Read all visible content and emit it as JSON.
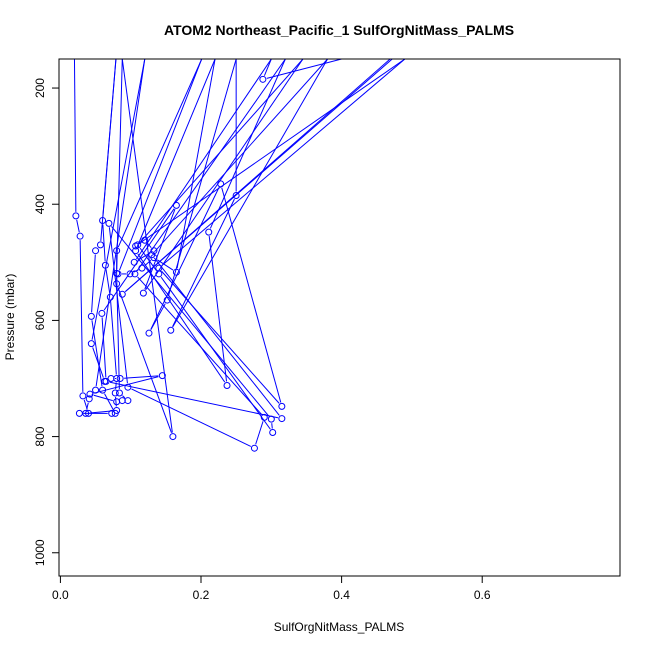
{
  "chart_data": {
    "type": "line",
    "title": "ATOM2 Northeast_Pacific_1 SulfOrgNitMass_PALMS",
    "xlabel": "SulfOrgNitMass_PALMS",
    "ylabel": "Pressure (mbar)",
    "xlim": [
      -0.002,
      0.796
    ],
    "ylim": [
      1040,
      150
    ],
    "y_reversed": true,
    "x_ticks": [
      0.0,
      0.2,
      0.4,
      0.6
    ],
    "x_tick_labels": [
      "0.0",
      "0.2",
      "0.4",
      "0.6"
    ],
    "y_ticks": [
      200,
      400,
      600,
      800,
      1000
    ],
    "y_tick_labels": [
      "200",
      "400",
      "600",
      "800",
      "1000"
    ],
    "grid": false,
    "line_color": "#0000ff",
    "series": [
      {
        "points": [
          [
            0.02,
            150
          ],
          [
            0.022,
            420
          ],
          [
            0.028,
            455
          ],
          [
            0.032,
            730
          ],
          [
            0.04,
            760
          ],
          [
            0.027,
            760
          ],
          [
            0.073,
            760
          ],
          [
            0.078,
            760
          ],
          [
            0.06,
            720
          ],
          [
            0.044,
            593
          ],
          [
            0.05,
            480
          ],
          [
            0.057,
            470
          ],
          [
            0.079,
            150
          ],
          [
            0.06,
            428
          ],
          [
            0.064,
            505
          ],
          [
            0.071,
            560
          ],
          [
            0.08,
            700
          ],
          [
            0.078,
            725
          ],
          [
            0.08,
            755
          ],
          [
            0.036,
            760
          ],
          [
            0.041,
            735
          ],
          [
            0.05,
            720
          ],
          [
            0.12,
            150
          ],
          [
            0.044,
            640
          ],
          [
            0.063,
            705
          ],
          [
            0.072,
            700
          ],
          [
            0.085,
            700
          ],
          [
            0.145,
            695
          ],
          [
            0.042,
            727
          ],
          [
            0.08,
            740
          ],
          [
            0.088,
            738
          ],
          [
            0.096,
            738
          ],
          [
            0.084,
            725
          ],
          [
            0.08,
            519
          ],
          [
            0.088,
            150
          ],
          [
            0.16,
            800
          ],
          [
            0.08,
            537
          ],
          [
            0.08,
            480
          ],
          [
            0.201,
            150
          ],
          [
            0.082,
            520
          ],
          [
            0.099,
            520
          ],
          [
            0.116,
            510
          ],
          [
            0.133,
            492
          ],
          [
            0.165,
            517
          ],
          [
            0.22,
            150
          ],
          [
            0.107,
            480
          ],
          [
            0.237,
            712
          ],
          [
            0.211,
            448
          ],
          [
            0.32,
            150
          ],
          [
            0.106,
            520
          ],
          [
            0.29,
            767
          ],
          [
            0.276,
            820
          ],
          [
            0.096,
            715
          ],
          [
            0.069,
            433
          ],
          [
            0.3,
            770
          ],
          [
            0.302,
            793
          ],
          [
            0.14,
            520
          ],
          [
            0.11,
            470
          ],
          [
            0.345,
            150
          ],
          [
            0.118,
            553
          ],
          [
            0.165,
            402
          ],
          [
            0.059,
            588
          ],
          [
            0.065,
            705
          ],
          [
            0.315,
            769
          ],
          [
            0.13,
            487
          ],
          [
            0.38,
            150
          ],
          [
            0.157,
            617
          ],
          [
            0.25,
            385
          ],
          [
            0.25,
            150
          ],
          [
            0.152,
            565
          ],
          [
            0.126,
            622
          ],
          [
            0.228,
            365
          ],
          [
            0.315,
            748
          ],
          [
            0.14,
            510
          ],
          [
            0.49,
            150
          ],
          [
            0.107,
            472
          ],
          [
            0.12,
            462
          ],
          [
            0.133,
            480
          ],
          [
            0.105,
            500
          ],
          [
            0.3,
            150
          ],
          [
            0.288,
            185
          ],
          [
            0.4,
            150
          ],
          [
            0.472,
            150
          ],
          [
            0.088,
            555
          ],
          [
            0.469,
            150
          ]
        ]
      }
    ]
  }
}
